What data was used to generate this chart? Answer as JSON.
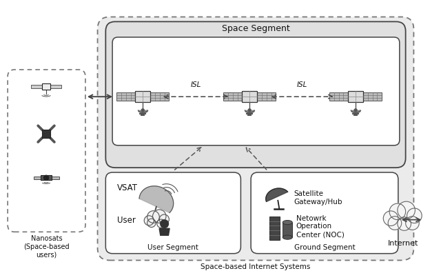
{
  "fig_width": 6.4,
  "fig_height": 3.93,
  "bg_color": "#ffffff",
  "labels": {
    "space_segment": "Space Segment",
    "user_segment": "User Segment",
    "ground_segment": "Ground Segment",
    "space_based": "Space-based Internet Systems",
    "nanosats": "Nanosats\n(Space-based\nusers)",
    "isl1": "ISL",
    "isl2": "ISL",
    "vsat": "VSAT",
    "user": "User",
    "satellite_gateway": "Satellite\nGateway/Hub",
    "noc": "Netowrk\nOperation\nCenter (NOC)",
    "internet": "Internet"
  },
  "colors": {
    "bg": "#f5f5f5",
    "outer_box_fill": "#e8e8e8",
    "outer_box_edge": "#666666",
    "space_seg_fill": "#e0e0e0",
    "space_seg_edge": "#444444",
    "sat_row_fill": "#ffffff",
    "sat_row_edge": "#444444",
    "user_seg_fill": "#ffffff",
    "user_seg_edge": "#444444",
    "ground_seg_fill": "#ffffff",
    "ground_seg_edge": "#444444",
    "nanosats_fill": "#ffffff",
    "nanosats_edge": "#666666",
    "text_color": "#111111",
    "icon_color": "#333333",
    "arrow_color": "#444444"
  }
}
